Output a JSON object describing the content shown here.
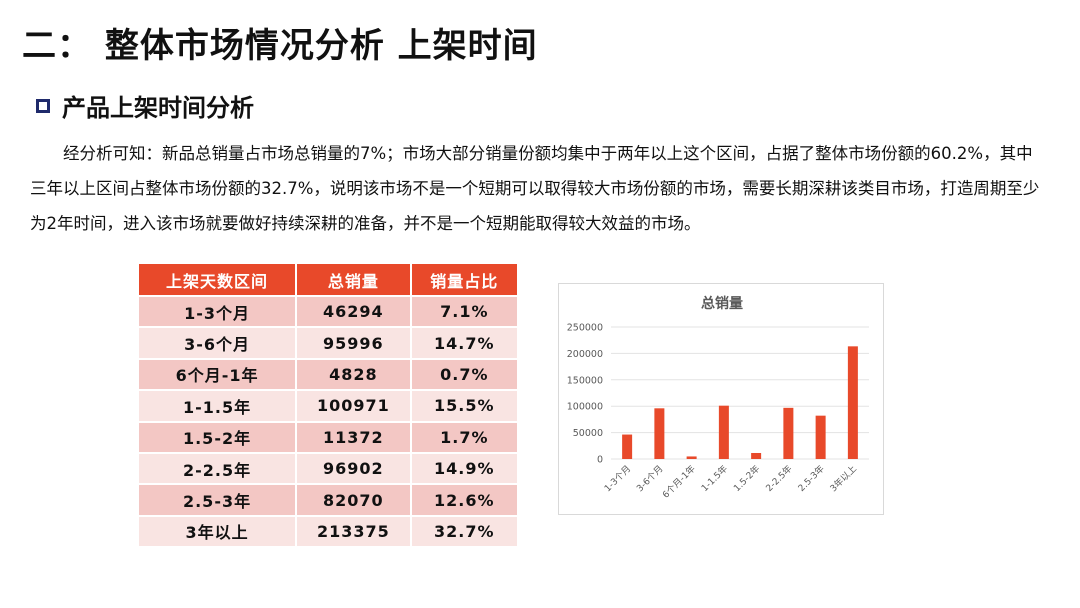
{
  "page": {
    "title": "二： 整体市场情况分析 上架时间",
    "section_heading": "产品上架时间分析",
    "paragraph": "经分析可知：新品总销量占市场总销量的7%；市场大部分销量份额均集中于两年以上这个区间，占据了整体市场份额的60.2%，其中三年以上区间占整体市场份额的32.7%，说明该市场不是一个短期可以取得较大市场份额的市场，需要长期深耕该类目市场，打造周期至少为2年时间，进入该市场就要做好持续深耕的准备，并不是一个短期能取得较大效益的市场。"
  },
  "table": {
    "headers": [
      "上架天数区间",
      "总销量",
      "销量占比"
    ],
    "rows": [
      [
        "1-3个月",
        "46294",
        "7.1%"
      ],
      [
        "3-6个月",
        "95996",
        "14.7%"
      ],
      [
        "6个月-1年",
        "4828",
        "0.7%"
      ],
      [
        "1-1.5年",
        "100971",
        "15.5%"
      ],
      [
        "1.5-2年",
        "11372",
        "1.7%"
      ],
      [
        "2-2.5年",
        "96902",
        "14.9%"
      ],
      [
        "2.5-3年",
        "82070",
        "12.6%"
      ],
      [
        "3年以上",
        "213375",
        "32.7%"
      ]
    ],
    "header_color": "#e8492a",
    "row_colors": [
      "#f3c7c4",
      "#f9e4e2"
    ]
  },
  "chart_data": {
    "type": "bar",
    "title": "总销量",
    "categories": [
      "1-3个月",
      "3-6个月",
      "6个月-1年",
      "1-1.5年",
      "1.5-2年",
      "2-2.5年",
      "2.5-3年",
      "3年以上"
    ],
    "values": [
      46294,
      95996,
      4828,
      100971,
      11372,
      96902,
      82070,
      213375
    ],
    "ylim": [
      0,
      250000
    ],
    "yticks": [
      "0",
      "50000",
      "100000",
      "150000",
      "200000",
      "250000"
    ],
    "grid": true,
    "legend": "none",
    "bar_color": "#e8492a"
  }
}
